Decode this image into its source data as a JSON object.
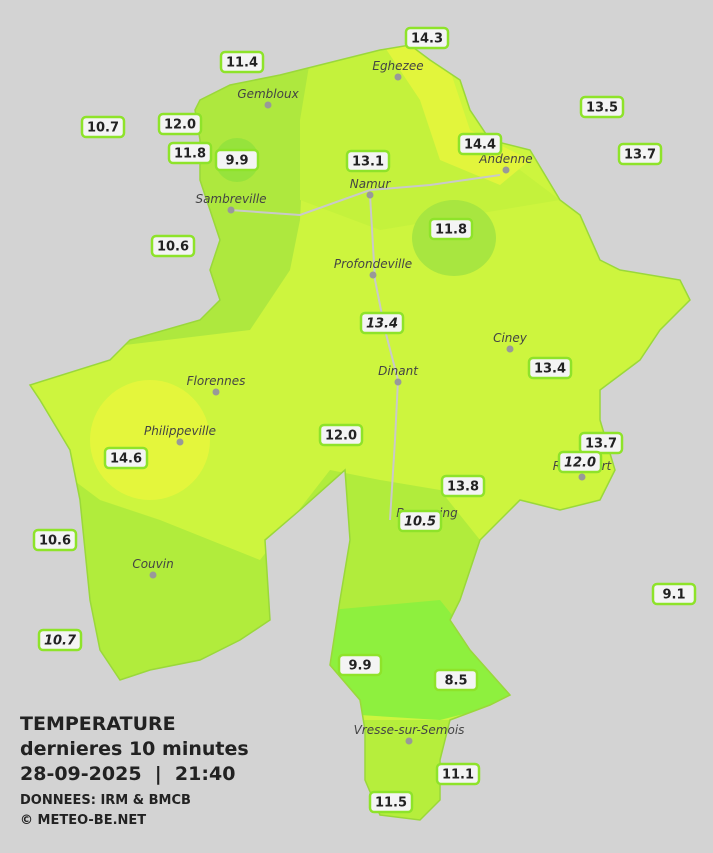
{
  "legend": {
    "title": "TEMPERATURE",
    "subtitle": "dernieres 10 minutes",
    "datetime": "28-09-2025  |  21:40",
    "source": "DONNEES: IRM & BMCB",
    "credit": "© METEO-BE.NET"
  },
  "towns": [
    "Eghezee",
    "Gembloux",
    "Andenne",
    "Namur",
    "Sambreville",
    "Profondeville",
    "Ciney",
    "Dinant",
    "Florennes",
    "Philippeville",
    "Rochefort",
    "Beauraing",
    "Couvin",
    "Vresse-sur-Semois"
  ],
  "stations": [
    "14.3",
    "11.4",
    "13.5",
    "10.7",
    "12.0",
    "11.8",
    "9.9",
    "14.4",
    "13.7",
    "13.1",
    "11.8",
    "10.6",
    "13.4",
    "13.4",
    "12.0",
    "13.7",
    "12.0",
    "14.6",
    "13.8",
    "10.5",
    "10.6",
    "9.1",
    "10.7",
    "9.9",
    "8.5",
    "11.1",
    "11.5"
  ]
}
